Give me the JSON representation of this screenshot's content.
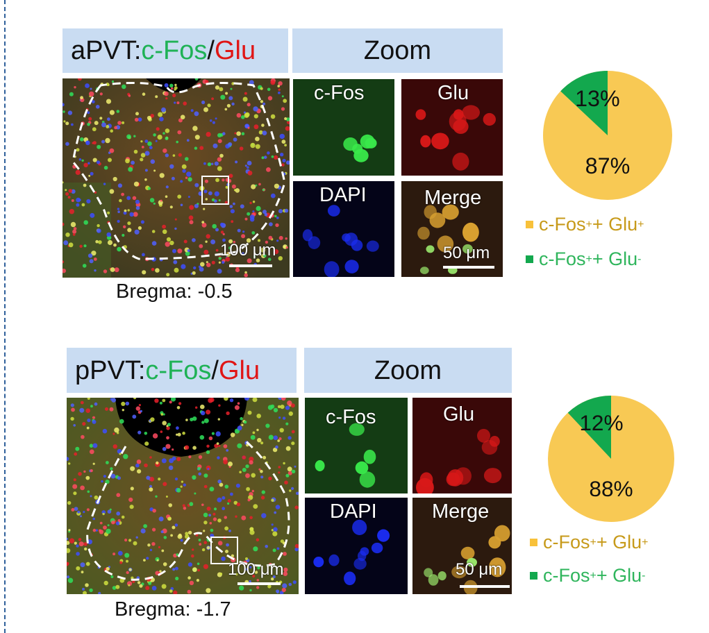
{
  "panels": [
    {
      "id": "a",
      "title": {
        "region": "aPVT: ",
        "marker1": "c-Fos",
        "sep": "/",
        "marker2": "Glu"
      },
      "zoom_title": "Zoom",
      "tiles": {
        "cfos": "c-Fos",
        "glu": "Glu",
        "dapi": "DAPI",
        "merge": "Merge"
      },
      "scalebar_main": "100 μm",
      "scalebar_zoom": "50 μm",
      "bregma": "Bregma: -0.5"
    },
    {
      "id": "b",
      "title": {
        "region": "pPVT: ",
        "marker1": "c-Fos",
        "sep": "/",
        "marker2": "Glu"
      },
      "zoom_title": "Zoom",
      "tiles": {
        "cfos": "c-Fos",
        "glu": "Glu",
        "dapi": "DAPI",
        "merge": "Merge"
      },
      "scalebar_main": "100 μm",
      "scalebar_zoom": "50 μm",
      "bregma": "Bregma: -1.7"
    }
  ],
  "legend": {
    "pos": {
      "base": "c-Fos",
      "sup1": "+",
      "mid": " + Glu",
      "sup2": "+"
    },
    "neg": {
      "base": "c-Fos",
      "sup1": "+",
      "mid": " + Glu",
      "sup2": "-"
    }
  },
  "colors": {
    "glu_pos": "#f8c954",
    "glu_neg": "#13a84e",
    "header": "#c9dcf2"
  },
  "chart_data": [
    {
      "type": "pie",
      "categories": [
        "c-Fos+ + Glu+",
        "c-Fos+ + Glu-"
      ],
      "values": [
        87,
        13
      ],
      "labels": [
        "87%",
        "13%"
      ]
    },
    {
      "type": "pie",
      "categories": [
        "c-Fos+ + Glu+",
        "c-Fos+ + Glu-"
      ],
      "values": [
        88,
        12
      ],
      "labels": [
        "88%",
        "12%"
      ]
    }
  ]
}
